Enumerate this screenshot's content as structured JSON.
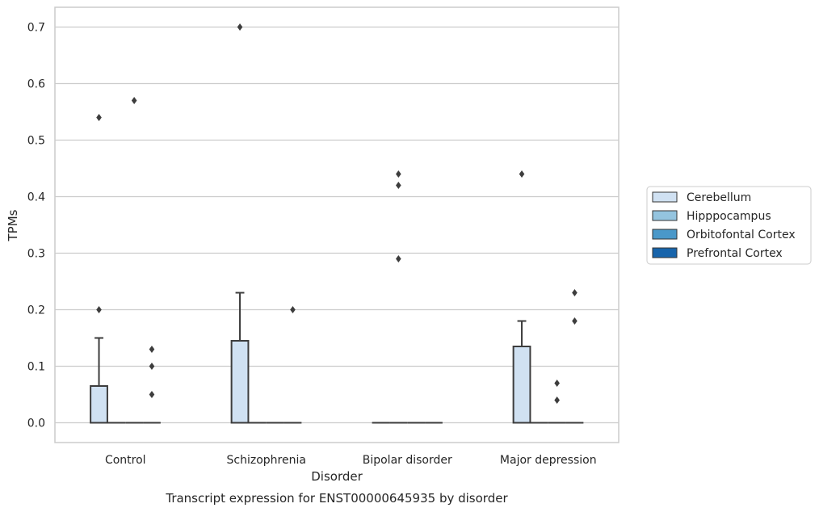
{
  "chart_data": {
    "type": "box",
    "xlabel": "Disorder",
    "ylabel": "TPMs",
    "caption": "Transcript expression for ENST00000645935 by disorder",
    "ylim": [
      -0.035,
      0.735
    ],
    "yticks": [
      "0.0",
      "0.1",
      "0.2",
      "0.3",
      "0.4",
      "0.5",
      "0.6",
      "0.7"
    ],
    "grid": "horizontal",
    "legend_position": "right",
    "categories": [
      "Control",
      "Schizophrenia",
      "Bipolar disorder",
      "Major depression"
    ],
    "series": [
      {
        "name": "Cerebellum",
        "color": "#d0e1f2",
        "boxes": [
          {
            "q1": 0,
            "median": 0,
            "q3": 0.065,
            "whisker_low": 0,
            "whisker_high": 0.15,
            "outliers": [
              0.2,
              0.54
            ]
          },
          {
            "q1": 0,
            "median": 0,
            "q3": 0.145,
            "whisker_low": 0,
            "whisker_high": 0.23,
            "outliers": [
              0.7
            ]
          },
          {
            "q1": 0,
            "median": 0,
            "q3": 0,
            "whisker_low": 0,
            "whisker_high": 0,
            "outliers": []
          },
          {
            "q1": 0,
            "median": 0,
            "q3": 0.135,
            "whisker_low": 0,
            "whisker_high": 0.18,
            "outliers": [
              0.44
            ]
          }
        ]
      },
      {
        "name": "Hipppocampus",
        "color": "#94c4df",
        "boxes": [
          {
            "q1": 0,
            "median": 0,
            "q3": 0,
            "whisker_low": 0,
            "whisker_high": 0,
            "outliers": []
          },
          {
            "q1": 0,
            "median": 0,
            "q3": 0,
            "whisker_low": 0,
            "whisker_high": 0,
            "outliers": []
          },
          {
            "q1": 0,
            "median": 0,
            "q3": 0,
            "whisker_low": 0,
            "whisker_high": 0,
            "outliers": [
              0.29,
              0.42,
              0.44
            ]
          },
          {
            "q1": 0,
            "median": 0,
            "q3": 0,
            "whisker_low": 0,
            "whisker_high": 0,
            "outliers": []
          }
        ]
      },
      {
        "name": "Orbitofontal Cortex",
        "color": "#4a98c9",
        "boxes": [
          {
            "q1": 0,
            "median": 0,
            "q3": 0,
            "whisker_low": 0,
            "whisker_high": 0,
            "outliers": [
              0.57
            ]
          },
          {
            "q1": 0,
            "median": 0,
            "q3": 0,
            "whisker_low": 0,
            "whisker_high": 0,
            "outliers": []
          },
          {
            "q1": 0,
            "median": 0,
            "q3": 0,
            "whisker_low": 0,
            "whisker_high": 0,
            "outliers": []
          },
          {
            "q1": 0,
            "median": 0,
            "q3": 0,
            "whisker_low": 0,
            "whisker_high": 0,
            "outliers": [
              0.04,
              0.07
            ]
          }
        ]
      },
      {
        "name": "Prefrontal Cortex",
        "color": "#1764ab",
        "boxes": [
          {
            "q1": 0,
            "median": 0,
            "q3": 0,
            "whisker_low": 0,
            "whisker_high": 0,
            "outliers": [
              0.05,
              0.1,
              0.13
            ]
          },
          {
            "q1": 0,
            "median": 0,
            "q3": 0,
            "whisker_low": 0,
            "whisker_high": 0,
            "outliers": [
              0.2
            ]
          },
          {
            "q1": 0,
            "median": 0,
            "q3": 0,
            "whisker_low": 0,
            "whisker_high": 0,
            "outliers": []
          },
          {
            "q1": 0,
            "median": 0,
            "q3": 0,
            "whisker_low": 0,
            "whisker_high": 0,
            "outliers": [
              0.18,
              0.23
            ]
          }
        ]
      }
    ]
  }
}
